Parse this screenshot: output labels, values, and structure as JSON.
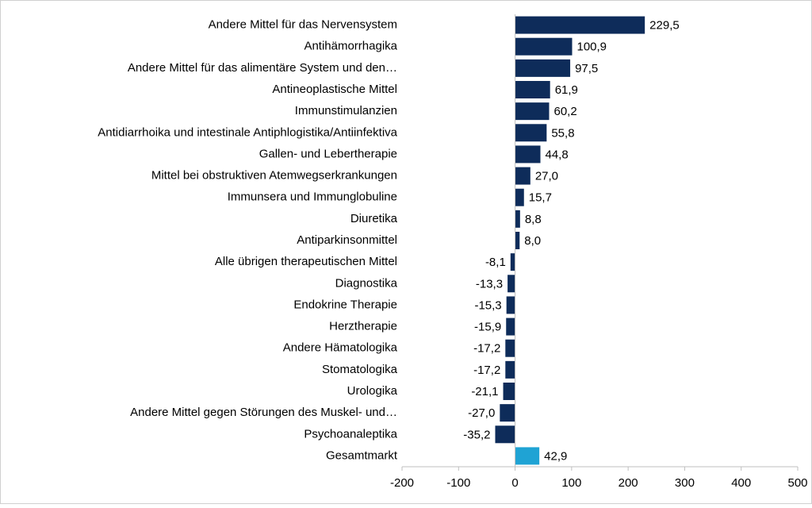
{
  "chart_data": {
    "type": "hbar",
    "categories": [
      "Andere Mittel für das Nervensystem",
      "Antihämorrhagika",
      "Andere Mittel für das alimentäre System und den…",
      "Antineoplastische Mittel",
      "Immunstimulanzien",
      "Antidiarrhoika und intestinale Antiphlogistika/Antiinfektiva",
      "Gallen- und Lebertherapie",
      "Mittel bei obstruktiven Atemwegserkrankungen",
      "Immunsera und Immunglobuline",
      "Diuretika",
      "Antiparkinsonmittel",
      "Alle übrigen therapeutischen Mittel",
      "Diagnostika",
      "Endokrine Therapie",
      "Herztherapie",
      "Andere Hämatologika",
      "Stomatologika",
      "Urologika",
      "Andere Mittel gegen Störungen des Muskel- und…",
      "Psychoanaleptika",
      "Gesamtmarkt"
    ],
    "values": [
      229.5,
      100.9,
      97.5,
      61.9,
      60.2,
      55.8,
      44.8,
      27.0,
      15.7,
      8.8,
      8.0,
      -8.1,
      -13.3,
      -15.3,
      -15.9,
      -17.2,
      -17.2,
      -21.1,
      -27.0,
      -35.2,
      42.9
    ],
    "value_labels": [
      "229,5",
      "100,9",
      "97,5",
      "61,9",
      "60,2",
      "55,8",
      "44,8",
      "27,0",
      "15,7",
      "8,8",
      "8,0",
      "-8,1",
      "-13,3",
      "-15,3",
      "-15,9",
      "-17,2",
      "-17,2",
      "-21,1",
      "-27,0",
      "-35,2",
      "42,9"
    ],
    "colors": [
      "#0e2c5a",
      "#0e2c5a",
      "#0e2c5a",
      "#0e2c5a",
      "#0e2c5a",
      "#0e2c5a",
      "#0e2c5a",
      "#0e2c5a",
      "#0e2c5a",
      "#0e2c5a",
      "#0e2c5a",
      "#0e2c5a",
      "#0e2c5a",
      "#0e2c5a",
      "#0e2c5a",
      "#0e2c5a",
      "#0e2c5a",
      "#0e2c5a",
      "#0e2c5a",
      "#0e2c5a",
      "#1fa3d4"
    ],
    "xlim": [
      -200,
      500
    ],
    "xticks": [
      -200,
      -100,
      0,
      100,
      200,
      300,
      400,
      500
    ],
    "grid": false
  }
}
